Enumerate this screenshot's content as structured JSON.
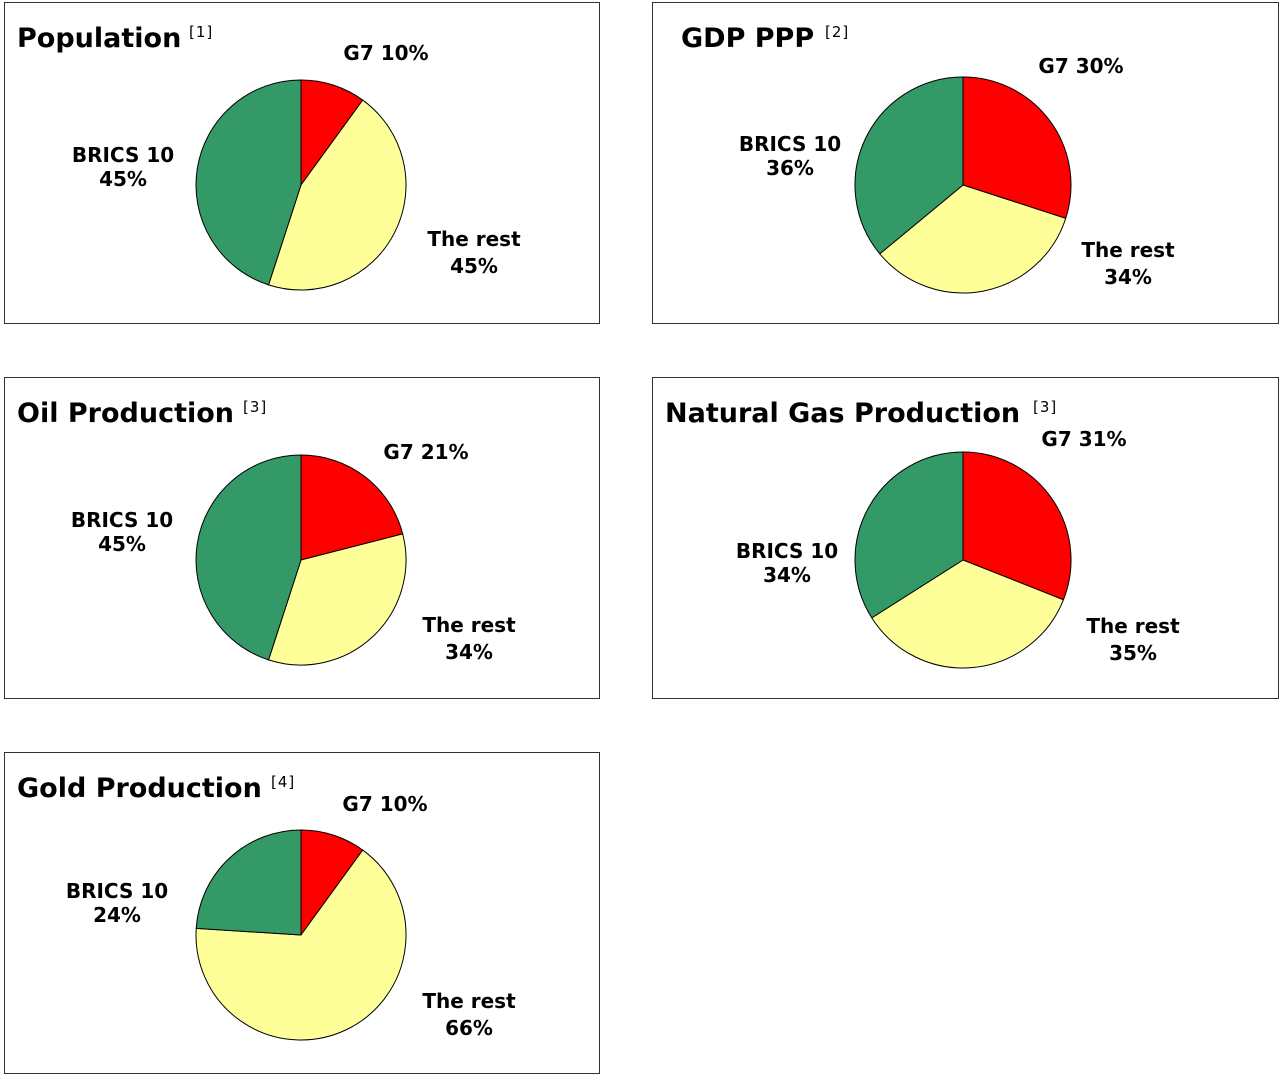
{
  "colors": {
    "G7": "#ff0000",
    "The rest": "#ffff99",
    "BRICS 10": "#339966"
  },
  "chart_data": [
    {
      "type": "pie",
      "title": "Population",
      "ref": "[1]",
      "slices": [
        {
          "name": "G7",
          "value": 10,
          "label_lines": [
            "G7 10%"
          ]
        },
        {
          "name": "The rest",
          "value": 45,
          "label_lines": [
            "The rest",
            "45%"
          ]
        },
        {
          "name": "BRICS 10",
          "value": 45,
          "label_lines": [
            "BRICS 10",
            "45%"
          ]
        }
      ]
    },
    {
      "type": "pie",
      "title": "GDP PPP",
      "ref": "[2]",
      "slices": [
        {
          "name": "G7",
          "value": 30,
          "label_lines": [
            "G7 30%"
          ]
        },
        {
          "name": "The rest",
          "value": 34,
          "label_lines": [
            "The rest",
            "34%"
          ]
        },
        {
          "name": "BRICS 10",
          "value": 36,
          "label_lines": [
            "BRICS 10",
            "36%"
          ]
        }
      ]
    },
    {
      "type": "pie",
      "title": "Oil Production",
      "ref": "[3]",
      "slices": [
        {
          "name": "G7",
          "value": 21,
          "label_lines": [
            "G7 21%"
          ]
        },
        {
          "name": "The rest",
          "value": 34,
          "label_lines": [
            "The rest",
            "34%"
          ]
        },
        {
          "name": "BRICS 10",
          "value": 45,
          "label_lines": [
            "BRICS 10",
            "45%"
          ]
        }
      ]
    },
    {
      "type": "pie",
      "title": "Natural Gas Production",
      "ref": "[3]",
      "slices": [
        {
          "name": "G7",
          "value": 31,
          "label_lines": [
            "G7 31%"
          ]
        },
        {
          "name": "The rest",
          "value": 35,
          "label_lines": [
            "The rest",
            "35%"
          ]
        },
        {
          "name": "BRICS 10",
          "value": 34,
          "label_lines": [
            "BRICS 10",
            "34%"
          ]
        }
      ]
    },
    {
      "type": "pie",
      "title": "Gold Production",
      "ref": "[4]",
      "slices": [
        {
          "name": "G7",
          "value": 10,
          "label_lines": [
            "G7 10%"
          ]
        },
        {
          "name": "The rest",
          "value": 66,
          "label_lines": [
            "The rest",
            "66%"
          ]
        },
        {
          "name": "BRICS 10",
          "value": 24,
          "label_lines": [
            "BRICS 10",
            "24%"
          ]
        }
      ]
    }
  ]
}
